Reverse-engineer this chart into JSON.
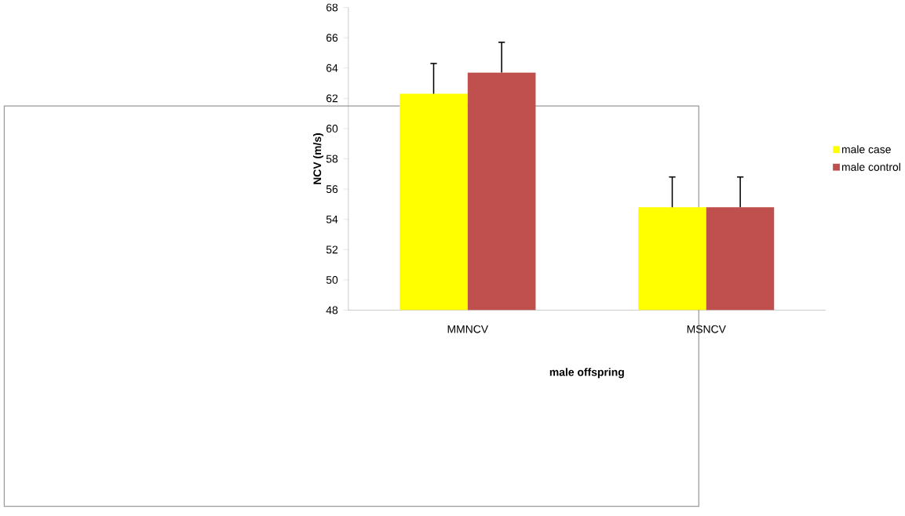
{
  "chart_data": {
    "type": "bar",
    "xlabel": "male offspring",
    "ylabel": "NCV (m/s)",
    "categories": [
      "MMNCV",
      "MSNCV"
    ],
    "series": [
      {
        "name": "male case",
        "color": "#ffff00",
        "values": [
          62.3,
          54.8
        ],
        "errors": [
          [
            62.3,
            64.3
          ],
          [
            54.8,
            56.8
          ]
        ]
      },
      {
        "name": "male control",
        "color": "#c0504d",
        "values": [
          63.7,
          54.8
        ],
        "errors": [
          [
            63.7,
            65.7
          ],
          [
            54.8,
            56.8
          ]
        ]
      }
    ],
    "ylim": [
      48,
      68
    ],
    "yticks": [
      48,
      50,
      52,
      54,
      56,
      58,
      60,
      62,
      64,
      66,
      68
    ],
    "grid": false,
    "legend": "right"
  }
}
